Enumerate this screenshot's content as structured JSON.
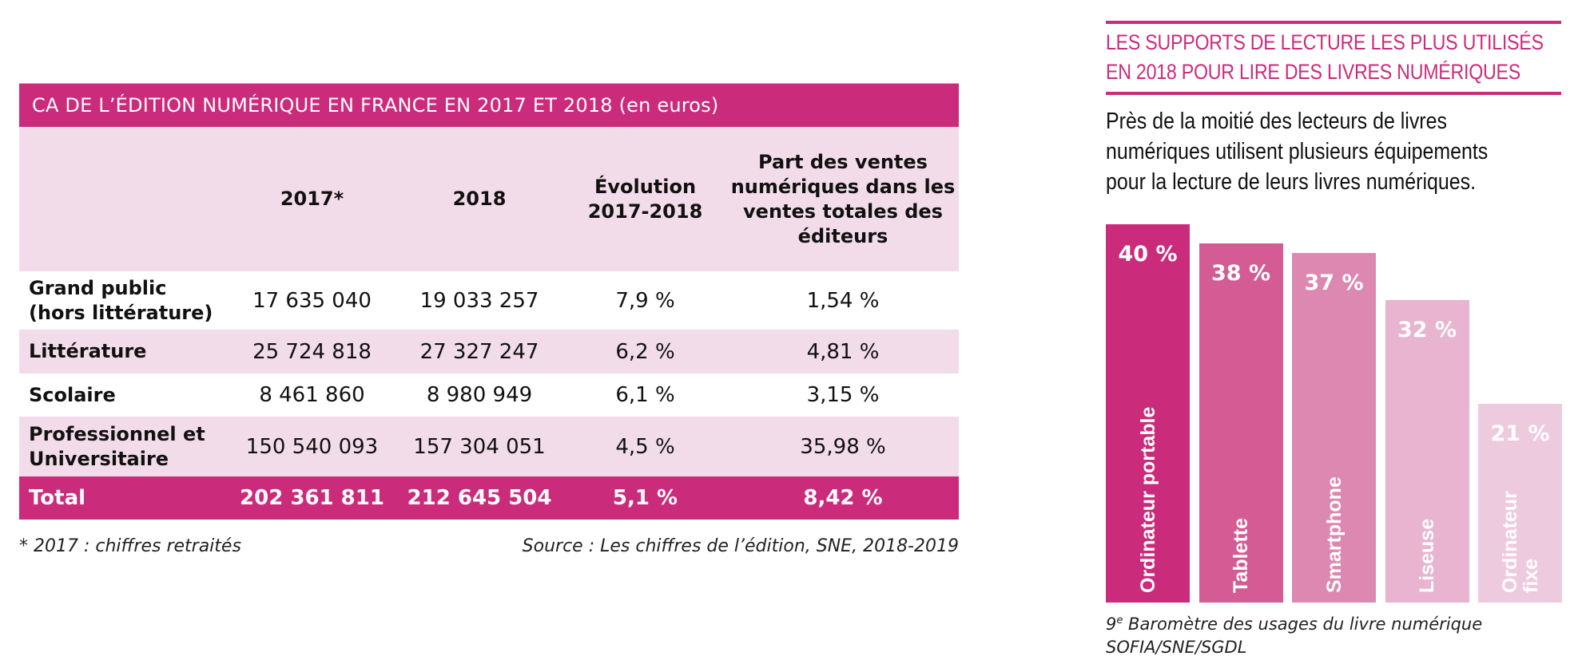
{
  "table": {
    "title": "CA DE L’ÉDITION NUMÉRIQUE EN FRANCE EN 2017 ET 2018 (en euros)",
    "headers": [
      "",
      "2017*",
      "2018",
      "Évolution 2017-2018",
      "Part des ventes numériques dans les ventes totales des éditeurs"
    ],
    "rows": [
      {
        "label": "Grand public (hors littérature)",
        "y2017": "17 635 040",
        "y2018": "19 033 257",
        "evolution": "7,9 %",
        "part": "1,54 %"
      },
      {
        "label": "Littérature",
        "y2017": "25 724 818",
        "y2018": "27 327 247",
        "evolution": "6,2 %",
        "part": "4,81 %"
      },
      {
        "label": "Scolaire",
        "y2017": "8 461 860",
        "y2018": "8 980 949",
        "evolution": "6,1 %",
        "part": "3,15 %"
      },
      {
        "label": "Professionnel et Universitaire",
        "y2017": "150 540 093",
        "y2018": "157 304 051",
        "evolution": "4,5 %",
        "part": "35,98 %"
      }
    ],
    "total": {
      "label": "Total",
      "y2017": "202 361 811",
      "y2018": "212 645 504",
      "evolution": "5,1 %",
      "part": "8,42 %"
    },
    "footnote": "* 2017 : chiffres retraités",
    "source": "Source : Les chiffres de l’édition, SNE, 2018-2019"
  },
  "panel": {
    "title_line1": "LES SUPPORTS DE LECTURE LES PLUS UTILISÉS",
    "title_line2": "EN 2018 POUR LIRE DES LIVRES NUMÉRIQUES",
    "text_line1": "Près de la moitié des lecteurs de livres",
    "text_line2": "numériques utilisent plusieurs équipements",
    "text_line3": "pour la lecture de leurs livres numériques.",
    "caption_prefix": "9",
    "caption_sup": "e",
    "caption_line1_rest": " Baromètre des usages du livre numérique",
    "caption_line2": "SOFIA/SNE/SGDL"
  },
  "colors": {
    "accent": "#cb2b7b",
    "row_alt": "#f3dce9"
  },
  "chart_data": {
    "type": "bar",
    "title": "LES SUPPORTS DE LECTURE LES PLUS UTILISÉS EN 2018 POUR LIRE DES LIVRES NUMÉRIQUES",
    "categories": [
      "Ordinateur portable",
      "Tablette",
      "Smartphone",
      "Liseuse",
      "Ordinateur fixe"
    ],
    "label_lines": [
      [
        "Ordinateur portable"
      ],
      [
        "Tablette"
      ],
      [
        "Smartphone"
      ],
      [
        "Liseuse"
      ],
      [
        "Ordinateur",
        "fixe"
      ]
    ],
    "values": [
      40,
      38,
      37,
      32,
      21
    ],
    "value_labels": [
      "40 %",
      "38 %",
      "37 %",
      "32 %",
      "21 %"
    ],
    "colors": [
      "#cb2b7b",
      "#d45b94",
      "#dc88b0",
      "#e8b4cf",
      "#eecadf"
    ],
    "unit": "%",
    "xlabel": "",
    "ylabel": "",
    "ylim": [
      0,
      40
    ],
    "grid": false,
    "legend": "none"
  }
}
